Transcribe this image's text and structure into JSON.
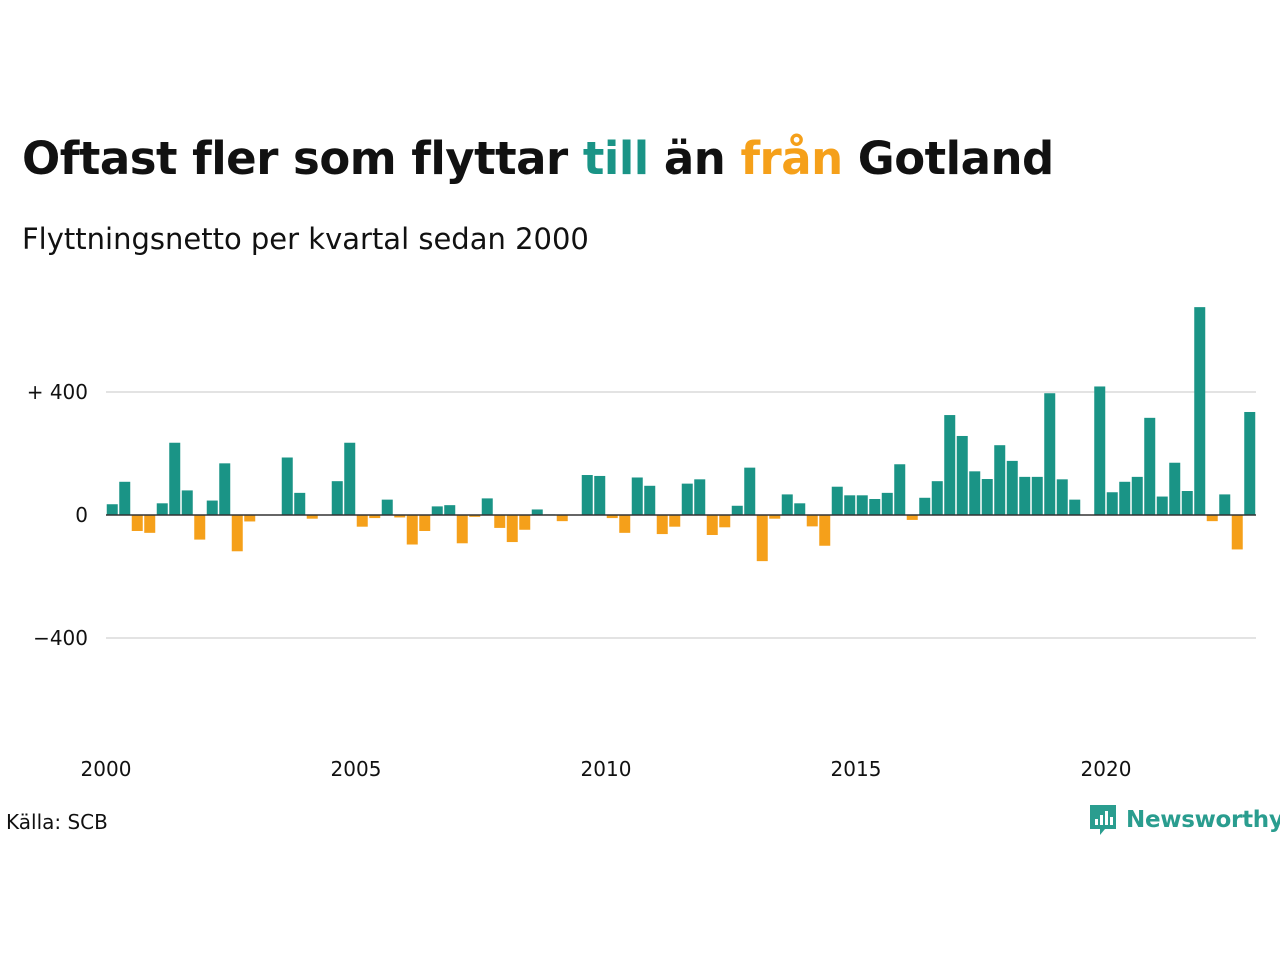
{
  "title": {
    "part1": "Oftast fler som flyttar ",
    "highlight_in": "till",
    "part2": " än ",
    "highlight_out": "från",
    "part3": " Gotland"
  },
  "subtitle": "Flyttningsnetto per kvartal sedan 2000",
  "source": "Källa: SCB",
  "brand": {
    "name": "Newsworthy",
    "icon": "newsworthy-logo-icon"
  },
  "colors": {
    "positive": "#1a9486",
    "negative": "#f5a01a",
    "grid": "#e3e3e3",
    "axis": "#333333"
  },
  "chart_data": {
    "type": "bar",
    "x_start": "2000-Q1",
    "frequency": "quarterly",
    "ylim": [
      -680,
      720
    ],
    "y_ticks": [
      {
        "value": 400,
        "label": "+ 400"
      },
      {
        "value": 0,
        "label": "0"
      },
      {
        "value": -400,
        "label": "−400"
      }
    ],
    "x_ticks": [
      {
        "year": 2000,
        "label": "2000"
      },
      {
        "year": 2005,
        "label": "2005"
      },
      {
        "year": 2010,
        "label": "2010"
      },
      {
        "year": 2015,
        "label": "2015"
      },
      {
        "year": 2020,
        "label": "2020"
      }
    ],
    "values": [
      35,
      108,
      -52,
      -58,
      38,
      235,
      80,
      -80,
      47,
      168,
      -118,
      -21,
      1,
      1,
      187,
      72,
      -12,
      1,
      110,
      235,
      -38,
      -10,
      50,
      -8,
      -96,
      -52,
      28,
      32,
      -92,
      -6,
      54,
      -42,
      -88,
      -48,
      18,
      2,
      -20,
      1,
      130,
      127,
      -10,
      -58,
      122,
      95,
      -62,
      -38,
      102,
      116,
      -65,
      -40,
      30,
      154,
      -150,
      -12,
      67,
      38,
      -37,
      -100,
      92,
      64,
      64,
      52,
      72,
      165,
      -16,
      56,
      110,
      325,
      257,
      142,
      117,
      227,
      176,
      124,
      124,
      396,
      116,
      50,
      1,
      418,
      74,
      108,
      124,
      316,
      60,
      170,
      78,
      676,
      -20,
      67,
      -112,
      335
    ]
  }
}
